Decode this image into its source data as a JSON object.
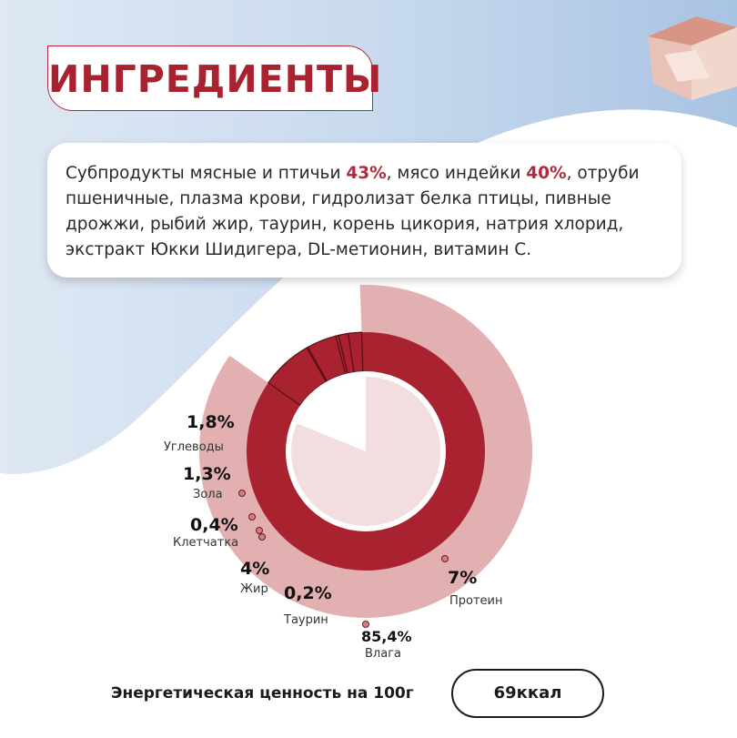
{
  "title": "ИНГРЕДИЕНТЫ",
  "ingredients": {
    "part1": "Субпродукты мясные и птичьи ",
    "meat_pct": "43%",
    "part2": ", мясо индейки ",
    "turkey_pct": "40%",
    "part3": ",  отруби пшеничные, плазма крови, гидролизат белка птицы, пивные дрожжи, рыбий жир, таурин, корень цикория, натрия хлорид, экстракт Юкки Шидигера, DL-метионин, витамин С."
  },
  "chart_data": {
    "type": "pie",
    "categories": [
      "Влага",
      "Протеин",
      "Таурин",
      "Жир",
      "Клетчатка",
      "Зола",
      "Углеводы"
    ],
    "values": [
      85.4,
      7,
      0.2,
      4,
      0.4,
      1.3,
      1.8
    ],
    "labels": [
      {
        "value": "85,4%",
        "name": "Влага"
      },
      {
        "value": "7%",
        "name": "Протеин"
      },
      {
        "value": "0,2%",
        "name": "Таурин"
      },
      {
        "value": "4%",
        "name": "Жир"
      },
      {
        "value": "0,4%",
        "name": "Клетчатка"
      },
      {
        "value": "1,3%",
        "name": "Зола"
      },
      {
        "value": "1,8%",
        "name": "Углеводы"
      }
    ],
    "colors": {
      "outer": "#e3b0b2",
      "inner": "#a8222f",
      "center": "#f2dedf",
      "bg_blue": "#b3cbe6"
    }
  },
  "energy": {
    "label": "Энергетическая ценность на 100г",
    "value": "69ккал"
  }
}
